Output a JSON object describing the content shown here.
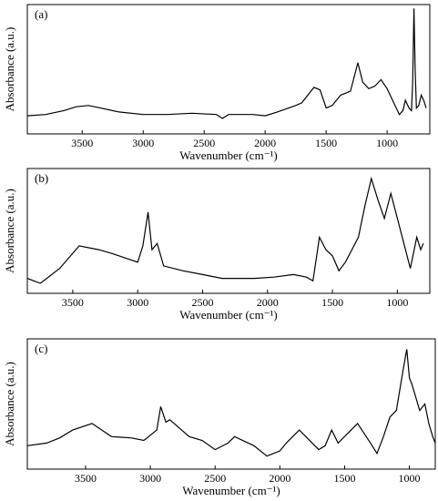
{
  "chart_data": [
    {
      "type": "line",
      "annotation": "(a)",
      "xlabel": "Wavenumber (cm⁻¹)",
      "ylabel": "Absorbance (a.u.)",
      "xlim": [
        3950,
        650
      ],
      "xticks": [
        3500,
        3000,
        2500,
        2000,
        1500,
        1000
      ],
      "ylim": [
        0,
        1
      ],
      "x": [
        3950,
        3800,
        3650,
        3550,
        3450,
        3350,
        3200,
        3000,
        2800,
        2600,
        2400,
        2350,
        2300,
        2100,
        2000,
        1900,
        1750,
        1700,
        1600,
        1550,
        1500,
        1450,
        1380,
        1300,
        1240,
        1200,
        1150,
        1100,
        1050,
        1000,
        950,
        900,
        870,
        850,
        820,
        800,
        790,
        780,
        770,
        760,
        740,
        720,
        700,
        680
      ],
      "values": [
        0.14,
        0.15,
        0.18,
        0.21,
        0.22,
        0.2,
        0.17,
        0.15,
        0.15,
        0.16,
        0.15,
        0.12,
        0.15,
        0.15,
        0.14,
        0.17,
        0.22,
        0.24,
        0.36,
        0.34,
        0.2,
        0.22,
        0.3,
        0.33,
        0.55,
        0.4,
        0.35,
        0.37,
        0.42,
        0.35,
        0.25,
        0.15,
        0.18,
        0.26,
        0.2,
        0.18,
        0.4,
        0.97,
        0.5,
        0.2,
        0.22,
        0.3,
        0.26,
        0.2
      ]
    },
    {
      "type": "line",
      "annotation": "(b)",
      "xlabel": "Wavenumber (cm⁻¹)",
      "ylabel": "Absorbance (a.u.)",
      "xlim": [
        3850,
        750
      ],
      "xticks": [
        3500,
        3000,
        2500,
        2000,
        1500,
        1000
      ],
      "ylim": [
        0,
        1
      ],
      "x": [
        3850,
        3800,
        3750,
        3700,
        3600,
        3450,
        3300,
        3200,
        3000,
        2960,
        2920,
        2890,
        2850,
        2800,
        2650,
        2500,
        2350,
        2200,
        2100,
        1950,
        1800,
        1700,
        1650,
        1600,
        1550,
        1500,
        1450,
        1400,
        1350,
        1300,
        1250,
        1200,
        1150,
        1100,
        1050,
        1000,
        950,
        900,
        850,
        820,
        800
      ],
      "values": [
        0.12,
        0.1,
        0.08,
        0.12,
        0.2,
        0.38,
        0.35,
        0.32,
        0.25,
        0.38,
        0.65,
        0.35,
        0.4,
        0.22,
        0.18,
        0.15,
        0.12,
        0.12,
        0.12,
        0.13,
        0.15,
        0.13,
        0.1,
        0.45,
        0.35,
        0.3,
        0.18,
        0.25,
        0.35,
        0.45,
        0.7,
        0.92,
        0.75,
        0.6,
        0.8,
        0.6,
        0.4,
        0.2,
        0.45,
        0.35,
        0.4
      ]
    },
    {
      "type": "line",
      "annotation": "(c)",
      "xlabel": "Wavenumber (cm⁻¹)",
      "ylabel": "Absorbance (a.u.)",
      "xlim": [
        3950,
        800
      ],
      "xticks": [
        3500,
        3000,
        2500,
        2000,
        1500,
        1000
      ],
      "ylim": [
        0,
        1
      ],
      "x": [
        3950,
        3800,
        3700,
        3600,
        3450,
        3300,
        3150,
        3050,
        2950,
        2920,
        2880,
        2850,
        2700,
        2600,
        2500,
        2400,
        2350,
        2200,
        2100,
        2000,
        1950,
        1850,
        1750,
        1700,
        1650,
        1600,
        1550,
        1450,
        1400,
        1300,
        1250,
        1200,
        1150,
        1100,
        1050,
        1020,
        1000,
        980,
        950,
        920,
        880,
        850,
        820,
        800
      ],
      "values": [
        0.18,
        0.2,
        0.24,
        0.3,
        0.35,
        0.25,
        0.24,
        0.22,
        0.3,
        0.48,
        0.36,
        0.38,
        0.25,
        0.22,
        0.15,
        0.2,
        0.25,
        0.18,
        0.1,
        0.14,
        0.2,
        0.3,
        0.2,
        0.15,
        0.18,
        0.3,
        0.2,
        0.3,
        0.35,
        0.2,
        0.12,
        0.25,
        0.4,
        0.45,
        0.75,
        0.92,
        0.7,
        0.65,
        0.55,
        0.45,
        0.5,
        0.35,
        0.25,
        0.2
      ]
    }
  ]
}
